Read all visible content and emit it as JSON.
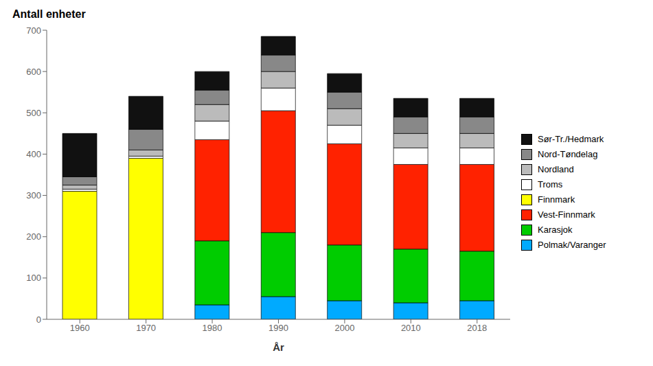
{
  "chart_data": {
    "type": "bar",
    "stacked": true,
    "title": "Antall enheter",
    "xlabel": "År",
    "categories": [
      "1960",
      "1970",
      "1980",
      "1990",
      "2000",
      "2010",
      "2018"
    ],
    "series": [
      {
        "name": "Polmak/Varanger",
        "color": "#00AAFF",
        "values": [
          0,
          0,
          35,
          55,
          45,
          40,
          45
        ]
      },
      {
        "name": "Karasjok",
        "color": "#00CC00",
        "values": [
          0,
          0,
          155,
          155,
          135,
          130,
          120
        ]
      },
      {
        "name": "Vest-Finnmark",
        "color": "#FF2200",
        "values": [
          0,
          0,
          245,
          295,
          245,
          205,
          210
        ]
      },
      {
        "name": "Finnmark",
        "color": "#FFFF00",
        "values": [
          310,
          390,
          0,
          0,
          0,
          0,
          0
        ]
      },
      {
        "name": "Troms",
        "color": "#FFFFFF",
        "values": [
          5,
          5,
          45,
          55,
          45,
          40,
          40
        ]
      },
      {
        "name": "Nordland",
        "color": "#BBBBBB",
        "values": [
          10,
          15,
          40,
          40,
          40,
          35,
          35
        ]
      },
      {
        "name": "Nord-Tøndelag",
        "color": "#888888",
        "values": [
          20,
          50,
          35,
          40,
          40,
          40,
          40
        ]
      },
      {
        "name": "Sør-Tr./Hedmark",
        "color": "#111111",
        "values": [
          105,
          80,
          45,
          45,
          45,
          45,
          45
        ]
      }
    ],
    "ylim": [
      0,
      700
    ],
    "yticks": [
      0,
      100,
      200,
      300,
      400,
      500,
      600,
      700
    ],
    "grid": false,
    "legend": "right"
  }
}
